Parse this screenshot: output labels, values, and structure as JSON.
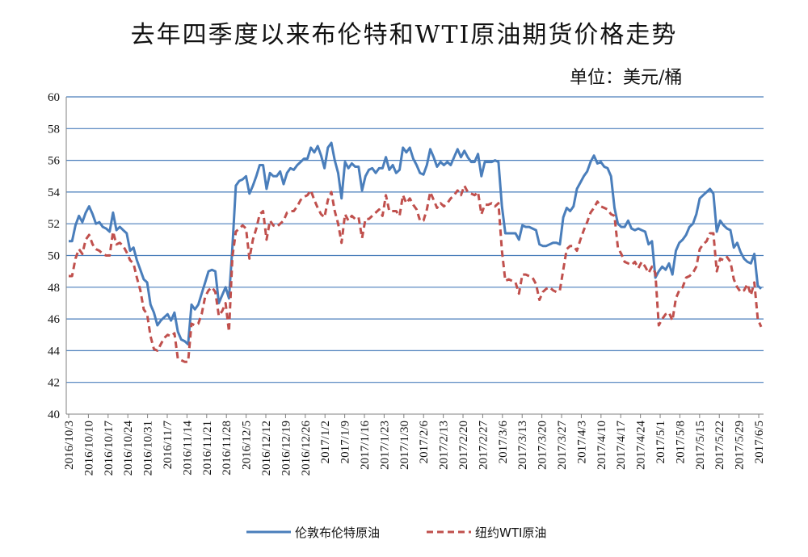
{
  "chart_data": {
    "type": "line",
    "title": "去年四季度以来布伦特和WTI原油期货价格走势",
    "unit_label": "单位：美元/桶",
    "ylim": [
      40,
      60
    ],
    "y_ticks": [
      40,
      42,
      44,
      46,
      48,
      50,
      52,
      54,
      56,
      58,
      60
    ],
    "x_tick_labels": [
      "2016/10/3",
      "2016/10/10",
      "2016/10/17",
      "2016/10/24",
      "2016/10/31",
      "2016/11/7",
      "2016/11/14",
      "2016/11/21",
      "2016/11/28",
      "2016/12/5",
      "2016/12/12",
      "2016/12/19",
      "2016/12/26",
      "2017/1/2",
      "2017/1/9",
      "2017/1/16",
      "2017/1/23",
      "2017/1/30",
      "2017/2/6",
      "2017/2/13",
      "2017/2/20",
      "2017/2/27",
      "2017/3/6",
      "2017/3/13",
      "2017/3/20",
      "2017/3/27",
      "2017/4/3",
      "2017/4/10",
      "2017/4/17",
      "2017/4/24",
      "2017/5/1",
      "2017/5/8",
      "2017/5/15",
      "2017/5/22",
      "2017/5/29",
      "2017/6/5"
    ],
    "grid": true,
    "legend_position": "bottom",
    "series": [
      {
        "name": "伦敦布伦特原油",
        "color": "#4a7ebb",
        "style": "solid",
        "values": [
          50.9,
          50.9,
          51.9,
          52.5,
          52.1,
          52.7,
          53.1,
          52.6,
          52.0,
          52.1,
          51.8,
          51.7,
          51.5,
          52.7,
          51.6,
          51.8,
          51.6,
          51.4,
          50.3,
          50.5,
          49.7,
          49.1,
          48.5,
          48.3,
          46.9,
          46.4,
          45.6,
          45.9,
          46.1,
          46.3,
          45.9,
          46.4,
          45.2,
          44.7,
          44.6,
          44.4,
          46.9,
          46.6,
          46.9,
          47.6,
          48.3,
          49.0,
          49.1,
          49.0,
          47.0,
          47.5,
          48.0,
          47.3,
          50.5,
          54.4,
          54.7,
          54.8,
          55.0,
          53.9,
          54.4,
          55.0,
          55.7,
          55.7,
          54.2,
          55.2,
          55.0,
          55.0,
          55.3,
          54.5,
          55.2,
          55.5,
          55.4,
          55.7,
          55.9,
          56.1,
          56.1,
          56.8,
          56.5,
          56.9,
          56.3,
          55.5,
          56.8,
          57.1,
          56.0,
          55.2,
          53.6,
          55.9,
          55.5,
          55.8,
          55.6,
          55.6,
          54.1,
          55.0,
          55.4,
          55.5,
          55.2,
          55.5,
          55.5,
          56.2,
          55.4,
          55.7,
          55.2,
          55.4,
          56.8,
          56.5,
          56.8,
          56.1,
          55.7,
          55.2,
          55.1,
          55.7,
          56.7,
          56.2,
          55.6,
          55.9,
          55.7,
          55.9,
          55.7,
          56.2,
          56.7,
          56.2,
          56.6,
          56.2,
          55.9,
          55.9,
          56.4,
          55.0,
          55.9,
          55.9,
          55.9,
          56.0,
          55.9,
          53.1,
          51.4,
          51.4,
          51.4,
          51.4,
          51.0,
          51.9,
          51.8,
          51.8,
          51.7,
          51.6,
          50.7,
          50.6,
          50.6,
          50.7,
          50.8,
          50.8,
          50.7,
          52.4,
          53.0,
          52.8,
          53.1,
          54.2,
          54.6,
          55.0,
          55.3,
          55.9,
          56.3,
          55.8,
          55.9,
          55.6,
          55.5,
          55.0,
          53.0,
          52.0,
          51.8,
          51.8,
          52.2,
          51.7,
          51.6,
          51.7,
          51.6,
          51.5,
          50.7,
          50.9,
          48.6,
          49.0,
          49.3,
          49.1,
          49.5,
          48.8,
          50.3,
          50.8,
          51.0,
          51.3,
          51.8,
          52.0,
          52.6,
          53.6,
          53.8,
          54.0,
          54.2,
          53.9,
          51.5,
          52.2,
          51.9,
          51.7,
          51.6,
          50.5,
          50.8,
          50.2,
          49.8,
          49.6,
          49.5,
          50.1,
          48.1,
          47.9
        ]
      },
      {
        "name": "纽约WTI原油",
        "color": "#c0504d",
        "style": "dashed",
        "values": [
          48.7,
          48.7,
          49.8,
          50.4,
          50.1,
          51.0,
          51.3,
          50.7,
          50.4,
          50.3,
          50.1,
          50.0,
          50.0,
          51.5,
          50.7,
          50.8,
          50.6,
          50.2,
          49.7,
          49.5,
          48.6,
          47.8,
          46.6,
          46.3,
          44.9,
          44.1,
          44.0,
          44.4,
          44.8,
          45.0,
          44.9,
          45.1,
          43.5,
          43.4,
          43.3,
          43.3,
          45.7,
          45.6,
          45.7,
          46.3,
          47.4,
          47.8,
          48.0,
          47.7,
          46.2,
          46.5,
          47.0,
          45.2,
          49.9,
          51.5,
          51.7,
          51.9,
          51.7,
          49.8,
          51.0,
          51.7,
          52.6,
          52.8,
          51.0,
          52.2,
          51.9,
          51.8,
          52.0,
          52.2,
          52.7,
          52.8,
          52.8,
          53.1,
          53.5,
          53.7,
          53.8,
          54.1,
          53.5,
          53.0,
          52.6,
          52.4,
          53.5,
          54.0,
          52.8,
          52.0,
          50.8,
          52.6,
          52.2,
          52.5,
          52.3,
          52.4,
          51.1,
          52.3,
          52.3,
          52.5,
          52.7,
          52.9,
          52.5,
          53.8,
          52.8,
          52.8,
          52.8,
          52.5,
          53.8,
          53.3,
          53.6,
          53.2,
          52.9,
          52.2,
          52.2,
          52.9,
          54.0,
          53.5,
          53.0,
          53.3,
          53.1,
          53.3,
          53.6,
          53.8,
          54.1,
          53.8,
          54.4,
          54.0,
          53.9,
          53.8,
          54.0,
          52.6,
          53.2,
          53.2,
          53.3,
          53.1,
          53.3,
          50.3,
          48.4,
          48.5,
          48.4,
          48.3,
          47.6,
          48.8,
          48.8,
          48.7,
          48.6,
          48.2,
          47.2,
          47.7,
          47.9,
          48.0,
          47.8,
          47.7,
          47.8,
          49.1,
          50.4,
          50.6,
          50.6,
          50.3,
          51.0,
          51.6,
          52.1,
          52.7,
          53.0,
          53.4,
          53.1,
          53.0,
          52.9,
          52.6,
          52.5,
          50.5,
          50.1,
          49.6,
          49.5,
          49.4,
          49.6,
          49.2,
          49.6,
          49.3,
          48.9,
          49.3,
          48.9,
          45.6,
          46.0,
          46.3,
          46.4,
          45.9,
          47.3,
          47.8,
          48.0,
          48.6,
          48.7,
          48.9,
          49.3,
          50.4,
          50.7,
          50.9,
          51.4,
          51.4,
          49.0,
          49.8,
          49.7,
          49.9,
          49.6,
          48.5,
          48.0,
          47.7,
          47.8,
          48.2,
          47.5,
          48.3,
          46.0,
          45.5
        ]
      }
    ]
  }
}
